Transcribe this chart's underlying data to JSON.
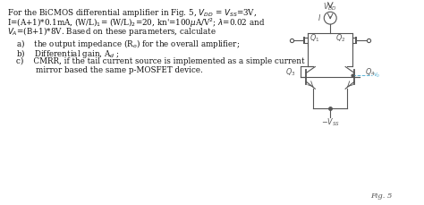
{
  "background": "#ffffff",
  "fig_label": "Fig. 5",
  "text_line1": "For the BiCMOS differential amplifier in Fig. 5, $V_{DD}$ = $V_{SS}$=3V,",
  "text_line2": "I=(A+1)*0.1mA, (W/L)$_1$= (W/L)$_2$=20, kn'=100$\\mu$A/V$^2$; $\\lambda$=0.02 and",
  "text_line3": "$V_A$=(B+1)*8V. Based on these parameters, calculate",
  "item_a": "a)    the output impedance (R$_o$) for the overall amplifier;",
  "item_b": "b)    Differential gain, A$_d$ ;",
  "item_c1": "c)    CMRR, if the tail current source is implemented as a simple current",
  "item_c2": "        mirror based the same p-MOSFET device.",
  "text_color": "#111111",
  "circuit_color": "#555555",
  "vo_color": "#5ab4d6",
  "fontsize_text": 6.3,
  "fontsize_circuit": 5.8
}
